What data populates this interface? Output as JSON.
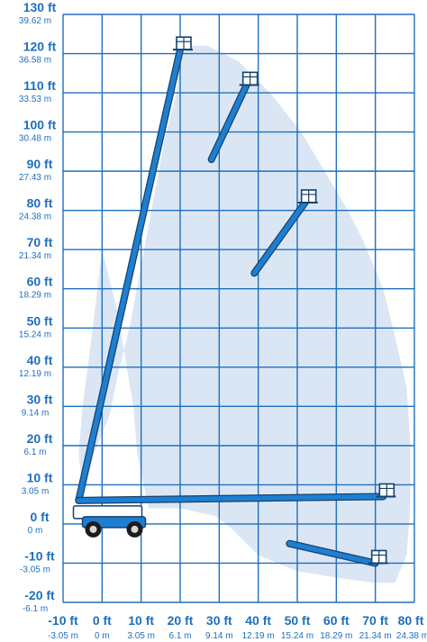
{
  "chart_data": {
    "type": "diagram",
    "x_axis": {
      "min_ft": -10,
      "max_ft": 80,
      "step_ft": 10,
      "ticks": [
        {
          "ft": "-10 ft",
          "m": "-3.05 m"
        },
        {
          "ft": "0 ft",
          "m": "0 m"
        },
        {
          "ft": "10 ft",
          "m": "3.05 m"
        },
        {
          "ft": "20 ft",
          "m": "6.1 m"
        },
        {
          "ft": "30 ft",
          "m": "9.14 m"
        },
        {
          "ft": "40 ft",
          "m": "12.19 m"
        },
        {
          "ft": "50 ft",
          "m": "15.24 m"
        },
        {
          "ft": "60 ft",
          "m": "18.29 m"
        },
        {
          "ft": "70 ft",
          "m": "21.34 m"
        },
        {
          "ft": "80 ft",
          "m": "24.38 m"
        }
      ]
    },
    "y_axis": {
      "min_ft": -20,
      "max_ft": 130,
      "step_ft": 10,
      "ticks": [
        {
          "ft": "130 ft",
          "m": "39.62 m"
        },
        {
          "ft": "120 ft",
          "m": "36.58 m"
        },
        {
          "ft": "110 ft",
          "m": "33.53 m"
        },
        {
          "ft": "100 ft",
          "m": "30.48 m"
        },
        {
          "ft": "90 ft",
          "m": "27.43 m"
        },
        {
          "ft": "80 ft",
          "m": "24.38 m"
        },
        {
          "ft": "70 ft",
          "m": "21.34 m"
        },
        {
          "ft": "60 ft",
          "m": "18.29 m"
        },
        {
          "ft": "50 ft",
          "m": "15.24 m"
        },
        {
          "ft": "40 ft",
          "m": "12.19 m"
        },
        {
          "ft": "30 ft",
          "m": "9.14 m"
        },
        {
          "ft": "20 ft",
          "m": "6.1 m"
        },
        {
          "ft": "10 ft",
          "m": "3.05 m"
        },
        {
          "ft": "0 ft",
          "m": "0 m"
        },
        {
          "ft": "-10 ft",
          "m": "-3.05 m"
        },
        {
          "ft": "-20 ft",
          "m": "-6.1 m"
        }
      ]
    },
    "grid": true,
    "colors": {
      "grid": "#1f6fbf",
      "labels": "#1f6fbf",
      "envelope": "#dbe6f4",
      "boom": "#1e7fd0",
      "boom_outline": "#16416e",
      "chassis": "#1e7fd0",
      "platform": "#ffffff"
    },
    "envelope_outline_ft": [
      [
        -5,
        8
      ],
      [
        -2,
        18
      ],
      [
        2,
        28
      ],
      [
        4,
        38
      ],
      [
        7,
        50
      ],
      [
        10,
        66
      ],
      [
        13,
        82
      ],
      [
        16,
        98
      ],
      [
        19,
        110
      ],
      [
        20,
        119
      ],
      [
        22,
        122
      ],
      [
        27,
        122
      ],
      [
        35,
        118
      ],
      [
        43,
        110
      ],
      [
        51,
        100
      ],
      [
        57,
        90
      ],
      [
        63,
        80
      ],
      [
        67,
        72
      ],
      [
        72,
        60
      ],
      [
        75,
        48
      ],
      [
        78,
        35
      ],
      [
        79,
        20
      ],
      [
        79,
        5
      ],
      [
        78,
        -8
      ],
      [
        75,
        -15
      ],
      [
        70,
        -15
      ],
      [
        62,
        -14
      ],
      [
        50,
        -12
      ],
      [
        40,
        -8
      ],
      [
        33,
        -1
      ],
      [
        29,
        2
      ],
      [
        20,
        4
      ],
      [
        12,
        4
      ],
      [
        9,
        18
      ],
      [
        8,
        30
      ],
      [
        6,
        42
      ],
      [
        4,
        54
      ],
      [
        0,
        70
      ],
      [
        -3,
        45
      ],
      [
        -5,
        30
      ],
      [
        -6,
        18
      ]
    ],
    "boom_positions_ft": [
      {
        "name": "full-height",
        "base": [
          -6,
          6
        ],
        "tip": [
          20,
          121
        ]
      },
      {
        "name": "upper-outreach",
        "base": [
          28,
          93
        ],
        "tip": [
          37,
          112
        ]
      },
      {
        "name": "mid-outreach",
        "base": [
          39,
          64
        ],
        "tip": [
          52,
          82
        ]
      },
      {
        "name": "horizontal",
        "base": [
          -6,
          6
        ],
        "tip": [
          72,
          7
        ]
      },
      {
        "name": "below-grade",
        "base": [
          48,
          -5
        ],
        "tip": [
          70,
          -10
        ]
      }
    ]
  }
}
